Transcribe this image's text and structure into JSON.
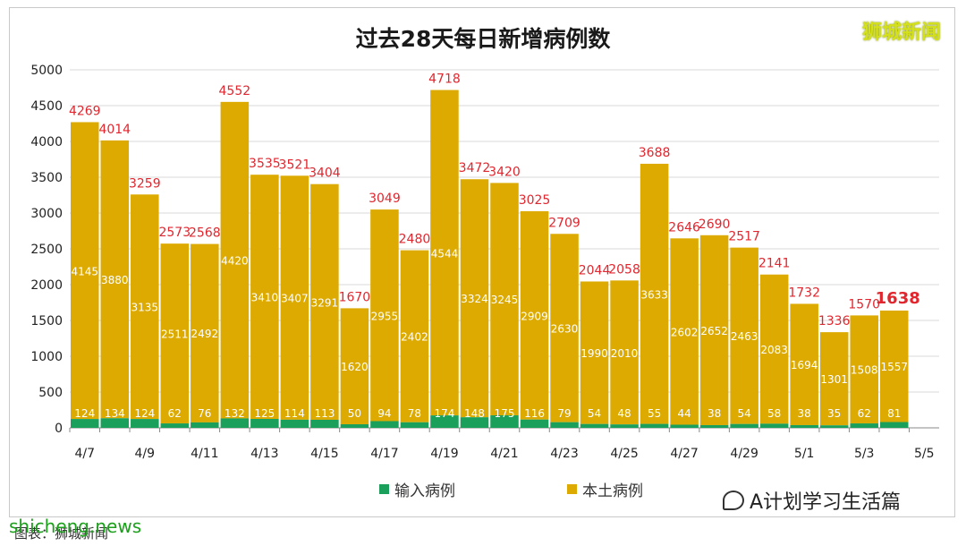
{
  "brand": "狮城新闻",
  "watermark": "A计划学习生活篇",
  "site_watermark": "shicheng.news",
  "source_note": "图表：狮城新闻",
  "chart_data": {
    "type": "bar",
    "stacked": true,
    "title": "过去28天每日新增病例数",
    "categories": [
      "4/7",
      "4/8",
      "4/9",
      "4/10",
      "4/11",
      "4/12",
      "4/13",
      "4/14",
      "4/15",
      "4/16",
      "4/17",
      "4/18",
      "4/19",
      "4/20",
      "4/21",
      "4/22",
      "4/23",
      "4/24",
      "4/25",
      "4/26",
      "4/27",
      "4/28",
      "4/29",
      "4/30",
      "5/1",
      "5/2",
      "5/3",
      "5/4",
      "5/5"
    ],
    "x_tick_labels": [
      "4/7",
      "",
      "4/9",
      "",
      "4/11",
      "",
      "4/13",
      "",
      "4/15",
      "",
      "4/17",
      "",
      "4/19",
      "",
      "4/21",
      "",
      "4/23",
      "",
      "4/25",
      "",
      "4/27",
      "",
      "4/29",
      "",
      "5/1",
      "",
      "5/3",
      "",
      "5/5"
    ],
    "series": [
      {
        "name": "输入病例",
        "color": "#1aa05a",
        "values": [
          124,
          134,
          124,
          62,
          76,
          132,
          125,
          114,
          113,
          50,
          94,
          78,
          174,
          148,
          175,
          116,
          79,
          54,
          48,
          55,
          44,
          38,
          54,
          58,
          38,
          35,
          62,
          81,
          null
        ]
      },
      {
        "name": "本土病例",
        "color": "#dcaa00",
        "values": [
          4145,
          3880,
          3135,
          2511,
          2492,
          4420,
          3410,
          3407,
          3291,
          1620,
          2955,
          2402,
          4544,
          3324,
          3245,
          2909,
          2630,
          1990,
          2010,
          3633,
          2602,
          2652,
          2463,
          2083,
          1694,
          1301,
          1508,
          1557,
          null
        ]
      }
    ],
    "totals": [
      4269,
      4014,
      3259,
      2573,
      2568,
      4552,
      3535,
      3521,
      3404,
      1670,
      3049,
      2480,
      4718,
      3472,
      3420,
      3025,
      2709,
      2044,
      2058,
      3688,
      2646,
      2690,
      2517,
      2141,
      1732,
      1336,
      1570,
      1638,
      null
    ],
    "highlight_last_total": true,
    "y_ticks": [
      "0",
      "500",
      "1000",
      "1500",
      "2000",
      "2500",
      "3000",
      "3500",
      "4000",
      "4500",
      "5000"
    ],
    "ylim": [
      0,
      5000
    ],
    "grid": true,
    "legend_position": "bottom",
    "colors": {
      "imported": "#1aa05a",
      "local": "#dcaa00",
      "total_label": "#e0262e",
      "inner_label": "#ffffff"
    }
  }
}
